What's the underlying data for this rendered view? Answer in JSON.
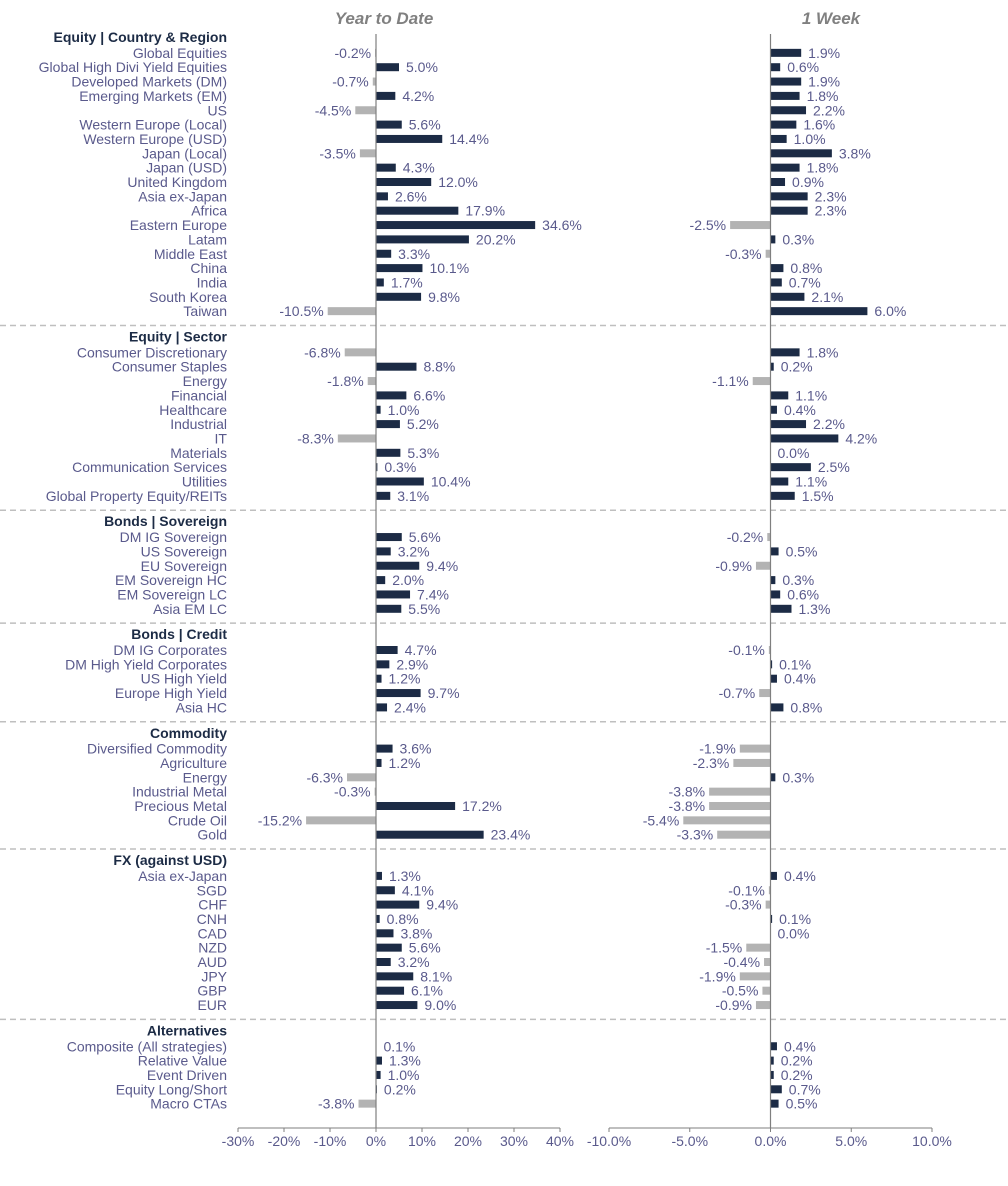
{
  "colors": {
    "positive": "#1c2b45",
    "negative": "#b3b3b3",
    "text": "#5a5a8c",
    "group": "#1c2b45",
    "title": "#808080",
    "separator": "#bfbfbf"
  },
  "chart_data": {
    "type": "bar",
    "orientation": "horizontal",
    "panels": [
      {
        "title": "Year to Date",
        "xlim": [
          -30,
          40
        ],
        "ticks": [
          -30,
          -20,
          -10,
          0,
          10,
          20,
          30,
          40
        ],
        "tick_labels": [
          "-30%",
          "-20%",
          "-10%",
          "0%",
          "10%",
          "20%",
          "30%",
          "40%"
        ]
      },
      {
        "title": "1 Week",
        "xlim": [
          -10,
          10
        ],
        "ticks": [
          -10,
          -5,
          0,
          5,
          10
        ],
        "tick_labels": [
          "-10.0%",
          "-5.0%",
          "0.0%",
          "5.0%",
          "10.0%"
        ]
      }
    ],
    "groups": [
      {
        "name": "Equity | Country & Region",
        "items": [
          {
            "label": "Global Equities",
            "ytd": -0.2,
            "week": 1.9
          },
          {
            "label": "Global High Divi Yield Equities",
            "ytd": 5.0,
            "week": 0.6
          },
          {
            "label": "Developed Markets (DM)",
            "ytd": -0.7,
            "week": 1.9
          },
          {
            "label": "Emerging Markets (EM)",
            "ytd": 4.2,
            "week": 1.8
          },
          {
            "label": "US",
            "ytd": -4.5,
            "week": 2.2
          },
          {
            "label": "Western Europe (Local)",
            "ytd": 5.6,
            "week": 1.6
          },
          {
            "label": "Western Europe (USD)",
            "ytd": 14.4,
            "week": 1.0
          },
          {
            "label": "Japan (Local)",
            "ytd": -3.5,
            "week": 3.8
          },
          {
            "label": "Japan (USD)",
            "ytd": 4.3,
            "week": 1.8
          },
          {
            "label": "United Kingdom",
            "ytd": 12.0,
            "week": 0.9
          },
          {
            "label": "Asia ex-Japan",
            "ytd": 2.6,
            "week": 2.3
          },
          {
            "label": "Africa",
            "ytd": 17.9,
            "week": 2.3
          },
          {
            "label": "Eastern Europe",
            "ytd": 34.6,
            "week": -2.5
          },
          {
            "label": "Latam",
            "ytd": 20.2,
            "week": 0.3
          },
          {
            "label": "Middle East",
            "ytd": 3.3,
            "week": -0.3
          },
          {
            "label": "China",
            "ytd": 10.1,
            "week": 0.8
          },
          {
            "label": "India",
            "ytd": 1.7,
            "week": 0.7
          },
          {
            "label": "South Korea",
            "ytd": 9.8,
            "week": 2.1
          },
          {
            "label": "Taiwan",
            "ytd": -10.5,
            "week": 6.0
          }
        ]
      },
      {
        "name": "Equity | Sector",
        "items": [
          {
            "label": "Consumer Discretionary",
            "ytd": -6.8,
            "week": 1.8
          },
          {
            "label": "Consumer Staples",
            "ytd": 8.8,
            "week": 0.2
          },
          {
            "label": "Energy",
            "ytd": -1.8,
            "week": -1.1
          },
          {
            "label": "Financial",
            "ytd": 6.6,
            "week": 1.1
          },
          {
            "label": "Healthcare",
            "ytd": 1.0,
            "week": 0.4
          },
          {
            "label": "Industrial",
            "ytd": 5.2,
            "week": 2.2
          },
          {
            "label": "IT",
            "ytd": -8.3,
            "week": 4.2
          },
          {
            "label": "Materials",
            "ytd": 5.3,
            "week": 0.0
          },
          {
            "label": "Communication Services",
            "ytd": 0.3,
            "week": 2.5
          },
          {
            "label": "Utilities",
            "ytd": 10.4,
            "week": 1.1
          },
          {
            "label": "Global Property Equity/REITs",
            "ytd": 3.1,
            "week": 1.5
          }
        ]
      },
      {
        "name": "Bonds | Sovereign",
        "items": [
          {
            "label": "DM IG Sovereign",
            "ytd": 5.6,
            "week": -0.2
          },
          {
            "label": "US Sovereign",
            "ytd": 3.2,
            "week": 0.5
          },
          {
            "label": "EU Sovereign",
            "ytd": 9.4,
            "week": -0.9
          },
          {
            "label": "EM Sovereign HC",
            "ytd": 2.0,
            "week": 0.3
          },
          {
            "label": "EM Sovereign LC",
            "ytd": 7.4,
            "week": 0.6
          },
          {
            "label": "Asia EM LC",
            "ytd": 5.5,
            "week": 1.3
          }
        ]
      },
      {
        "name": "Bonds | Credit",
        "items": [
          {
            "label": "DM IG Corporates",
            "ytd": 4.7,
            "week": -0.1
          },
          {
            "label": "DM High Yield Corporates",
            "ytd": 2.9,
            "week": 0.1
          },
          {
            "label": "US High Yield",
            "ytd": 1.2,
            "week": 0.4
          },
          {
            "label": "Europe High Yield",
            "ytd": 9.7,
            "week": -0.7
          },
          {
            "label": "Asia HC",
            "ytd": 2.4,
            "week": 0.8
          }
        ]
      },
      {
        "name": "Commodity",
        "items": [
          {
            "label": "Diversified Commodity",
            "ytd": 3.6,
            "week": -1.9
          },
          {
            "label": "Agriculture",
            "ytd": 1.2,
            "week": -2.3
          },
          {
            "label": "Energy",
            "ytd": -6.3,
            "week": 0.3
          },
          {
            "label": "Industrial Metal",
            "ytd": -0.3,
            "week": -3.8
          },
          {
            "label": "Precious Metal",
            "ytd": 17.2,
            "week": -3.8
          },
          {
            "label": "Crude Oil",
            "ytd": -15.2,
            "week": -5.4
          },
          {
            "label": "Gold",
            "ytd": 23.4,
            "week": -3.3
          }
        ]
      },
      {
        "name": "FX (against USD)",
        "items": [
          {
            "label": "Asia ex-Japan",
            "ytd": 1.3,
            "week": 0.4
          },
          {
            "label": "SGD",
            "ytd": 4.1,
            "week": -0.1
          },
          {
            "label": "CHF",
            "ytd": 9.4,
            "week": -0.3
          },
          {
            "label": "CNH",
            "ytd": 0.8,
            "week": 0.1
          },
          {
            "label": "CAD",
            "ytd": 3.8,
            "week": 0.0
          },
          {
            "label": "NZD",
            "ytd": 5.6,
            "week": -1.5
          },
          {
            "label": "AUD",
            "ytd": 3.2,
            "week": -0.4
          },
          {
            "label": "JPY",
            "ytd": 8.1,
            "week": -1.9
          },
          {
            "label": "GBP",
            "ytd": 6.1,
            "week": -0.5
          },
          {
            "label": "EUR",
            "ytd": 9.0,
            "week": -0.9
          }
        ]
      },
      {
        "name": "Alternatives",
        "items": [
          {
            "label": "Composite (All strategies)",
            "ytd": 0.1,
            "week": 0.4
          },
          {
            "label": "Relative Value",
            "ytd": 1.3,
            "week": 0.2
          },
          {
            "label": "Event Driven",
            "ytd": 1.0,
            "week": 0.2
          },
          {
            "label": "Equity Long/Short",
            "ytd": 0.2,
            "week": 0.7
          },
          {
            "label": "Macro CTAs",
            "ytd": -3.8,
            "week": 0.5
          }
        ]
      }
    ]
  }
}
